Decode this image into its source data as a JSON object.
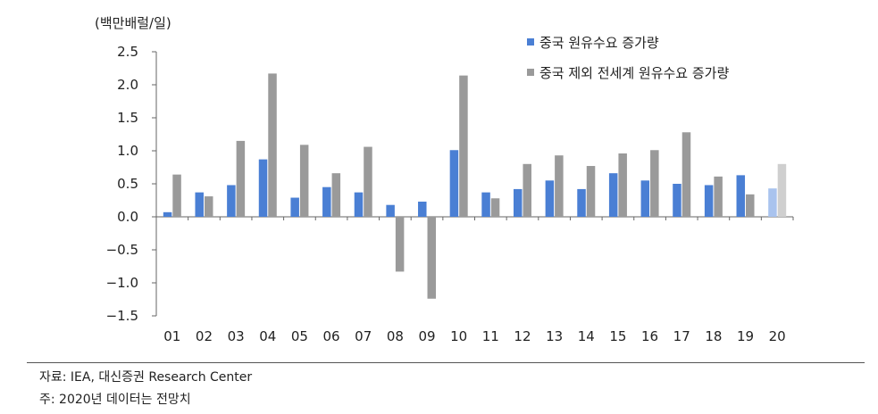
{
  "chart_data": {
    "type": "bar",
    "unit_label": "(백만배럴/일)",
    "categories": [
      "01",
      "02",
      "03",
      "04",
      "05",
      "06",
      "07",
      "08",
      "09",
      "10",
      "11",
      "12",
      "13",
      "14",
      "15",
      "16",
      "17",
      "18",
      "19",
      "20"
    ],
    "series": [
      {
        "name": "중국 원유수요 증가량",
        "color": "#4a7fd4",
        "highlight_last_color": "#a9c3ee",
        "values": [
          0.07,
          0.37,
          0.48,
          0.87,
          0.29,
          0.45,
          0.37,
          0.18,
          0.23,
          1.01,
          0.37,
          0.42,
          0.55,
          0.42,
          0.66,
          0.55,
          0.5,
          0.48,
          0.63,
          0.43
        ]
      },
      {
        "name": "중국 제외 전세계 원유수요 증가량",
        "color": "#9a9a9a",
        "highlight_last_color": "#cfcfcf",
        "values": [
          0.64,
          0.31,
          1.15,
          2.17,
          1.09,
          0.66,
          1.06,
          -0.83,
          -1.24,
          2.14,
          0.28,
          0.8,
          0.93,
          0.77,
          0.96,
          1.01,
          1.28,
          0.61,
          0.34,
          0.8
        ]
      }
    ],
    "ylim": [
      -1.5,
      2.5
    ],
    "yticks": [
      "2.5",
      "2.0",
      "1.5",
      "1.0",
      "0.5",
      "0.0",
      "−0.5",
      "−1.0",
      "−1.5"
    ],
    "ytick_values": [
      2.5,
      2.0,
      1.5,
      1.0,
      0.5,
      0.0,
      -0.5,
      -1.0,
      -1.5
    ],
    "legend_position": "top-right"
  },
  "footer": {
    "source": "자료: IEA, 대신증권 Research Center",
    "note": "주: 2020년 데이터는 전망치"
  }
}
